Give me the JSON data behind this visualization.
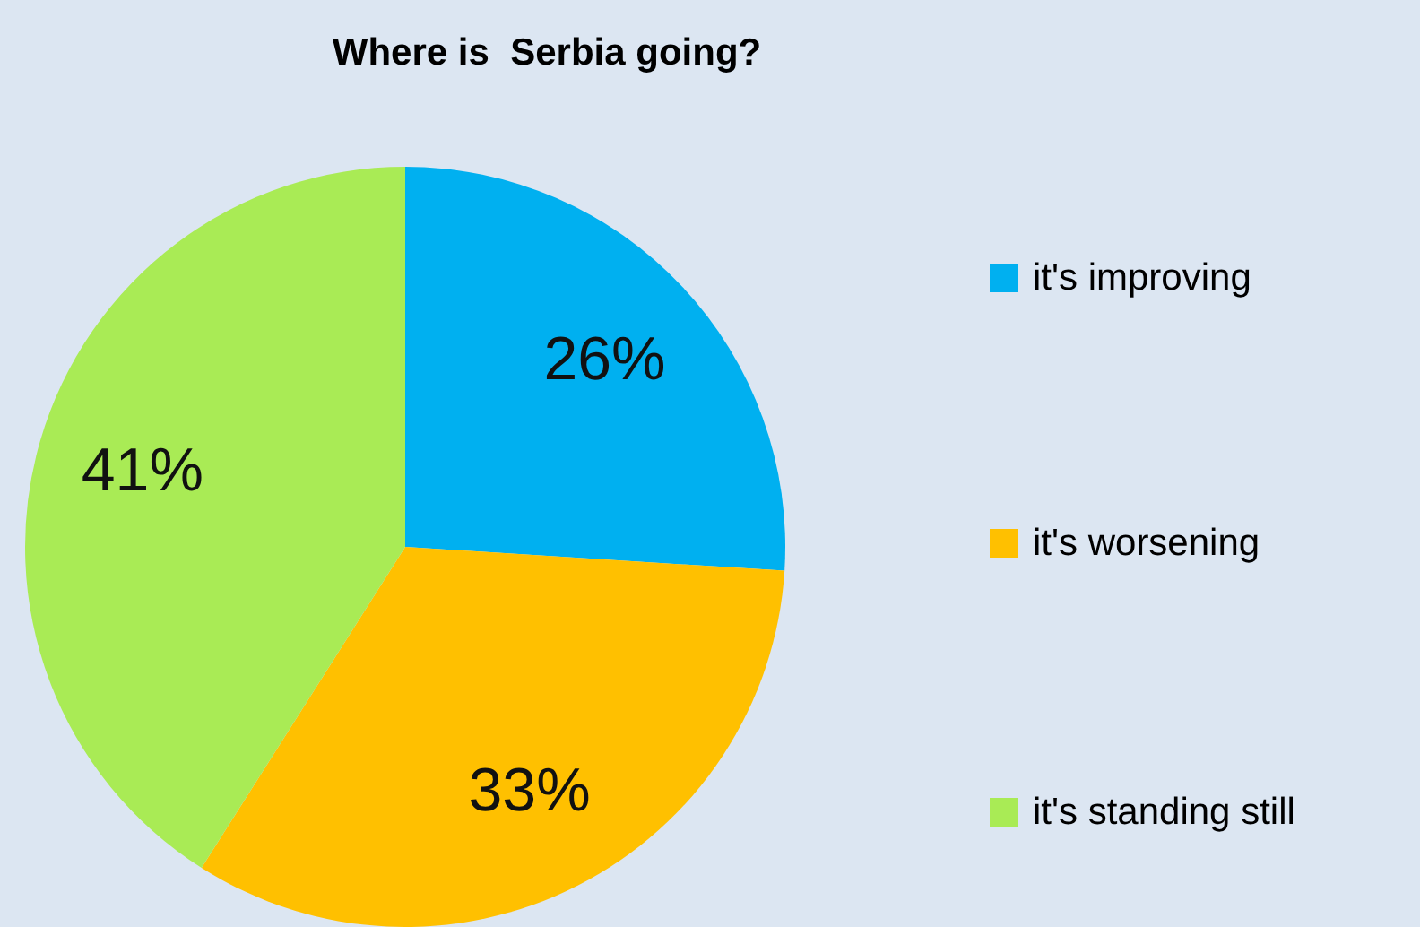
{
  "chart_data": {
    "type": "pie",
    "title": "Where is  Serbia going?",
    "categories": [
      "it's improving",
      "it's worsening",
      "it's standing still"
    ],
    "values": [
      26,
      33,
      41
    ],
    "colors": [
      "#00b0f0",
      "#ffc000",
      "#a9eb55"
    ],
    "value_labels": [
      "26%",
      "33%",
      "41%"
    ],
    "legend": "right"
  }
}
